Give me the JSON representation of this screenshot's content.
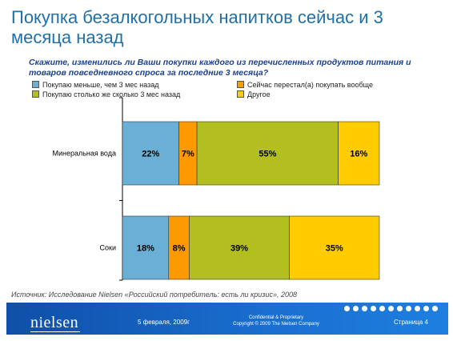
{
  "slide": {
    "title": "Покупка безалкогольных напитков сейчас и 3 месяца назад",
    "subtitle": "Скажите, изменились ли Ваши покупки каждого из перечисленных продуктов питания и товаров повседневного спроса за последние 3 месяца?",
    "source": "Источник: Исследование Nielsen «Российский потребитель: есть ли кризис», 2008"
  },
  "legend": [
    {
      "label": "Покупаю меньше, чем 3 мес назад",
      "color": "#6aafd5"
    },
    {
      "label": "Сейчас перестал(а) покупать вообще",
      "color": "#ff9900"
    },
    {
      "label": "Покупаю столько же сколько 3 мес назад",
      "color": "#b2bf1e"
    },
    {
      "label": "Другое",
      "color": "#ffcc00"
    }
  ],
  "chart_data": {
    "type": "bar",
    "orientation": "horizontal",
    "stacked": true,
    "categories": [
      "Минеральная вода",
      "Соки"
    ],
    "series": [
      {
        "name": "Покупаю меньше, чем 3 мес назад",
        "values": [
          22,
          18
        ],
        "labels": [
          "22%",
          "18%"
        ],
        "color": "#6aafd5"
      },
      {
        "name": "Сейчас перестал(а) покупать вообще",
        "values": [
          7,
          8
        ],
        "labels": [
          "7%",
          "8%"
        ],
        "color": "#ff9900"
      },
      {
        "name": "Покупаю столько же сколько 3 мес назад",
        "values": [
          55,
          39
        ],
        "labels": [
          "55%",
          "39%"
        ],
        "color": "#b2bf1e"
      },
      {
        "name": "Другое",
        "values": [
          16,
          35
        ],
        "labels": [
          "16%",
          "35%"
        ],
        "color": "#ffcc00"
      }
    ],
    "xlim": [
      0,
      100
    ],
    "grid": false,
    "legend_position": "top"
  },
  "footer": {
    "logo": "nielsen",
    "date": "5 февраля, 2009г",
    "confidential": "Confidential & Proprietary",
    "copyright": "Copyright © 2009 The Nielsen Company",
    "page": "Страница 4"
  }
}
